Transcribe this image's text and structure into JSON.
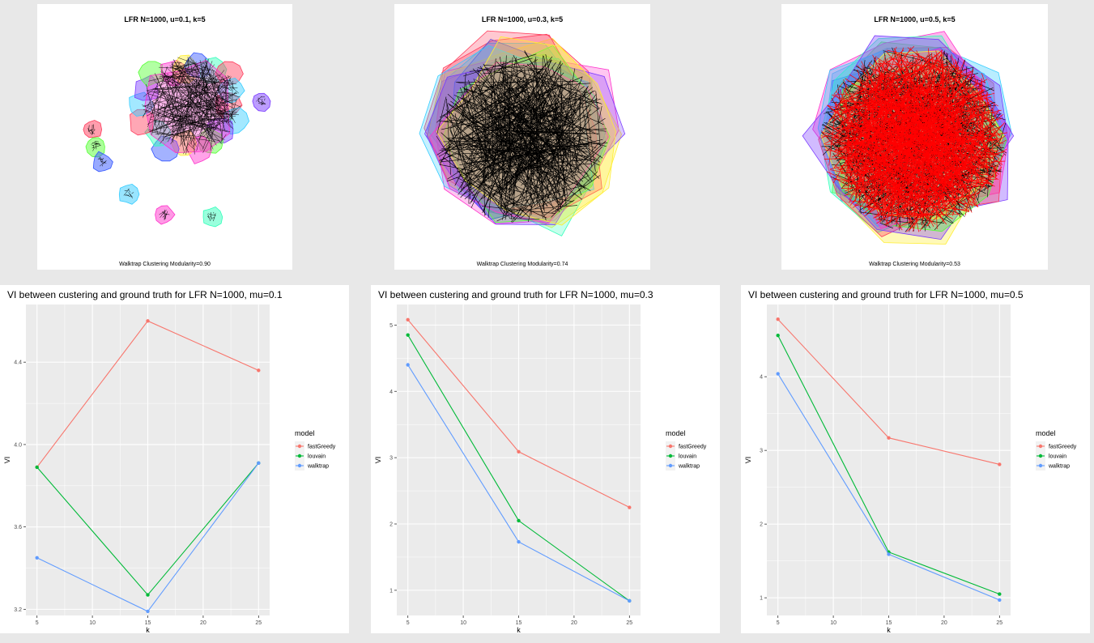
{
  "network_panels": [
    {
      "title": "LFR N=1000, u=0.1, k=5",
      "caption": "Walktrap Clustering Modularity=0.90",
      "edge_color": "#000000",
      "density": "low"
    },
    {
      "title": "LFR N=1000, u=0.3, k=5",
      "caption": "Walktrap Clustering Modularity=0.74",
      "edge_color": "#000000",
      "density": "medium"
    },
    {
      "title": "LFR N=1000, u=0.5, k=5",
      "caption": "Walktrap Clustering Modularity=0.53",
      "edge_color": "#ff0000",
      "density": "high"
    }
  ],
  "series_colors": {
    "fastGreedy": "#F8766D",
    "louvain": "#00BA38",
    "walktrap": "#619CFF"
  },
  "chart_data": [
    {
      "type": "line",
      "title": "VI between custering and ground truth for LFR N=1000, mu=0.1",
      "xlabel": "k",
      "ylabel": "VI",
      "x": [
        5,
        15,
        25
      ],
      "xlim": [
        4,
        26
      ],
      "ylim": [
        3.17,
        4.68
      ],
      "xticks": [
        "5",
        "10",
        "15",
        "20",
        "25"
      ],
      "yticks": [
        "3.2",
        "3.6",
        "4.0",
        "4.4"
      ],
      "legend_title": "model",
      "series": [
        {
          "name": "fastGreedy",
          "values": [
            3.89,
            4.6,
            4.36
          ]
        },
        {
          "name": "louvain",
          "values": [
            3.89,
            3.27,
            3.91
          ]
        },
        {
          "name": "walktrap",
          "values": [
            3.45,
            3.19,
            3.91
          ]
        }
      ]
    },
    {
      "type": "line",
      "title": "VI between custering and ground truth for LFR N=1000, mu=0.3",
      "xlabel": "k",
      "ylabel": "VI",
      "x": [
        5,
        15,
        25
      ],
      "xlim": [
        4,
        26
      ],
      "ylim": [
        0.62,
        5.31
      ],
      "xticks": [
        "5",
        "10",
        "15",
        "20",
        "25"
      ],
      "yticks": [
        "1",
        "2",
        "3",
        "4",
        "5"
      ],
      "legend_title": "model",
      "series": [
        {
          "name": "fastGreedy",
          "values": [
            5.08,
            3.09,
            2.25
          ]
        },
        {
          "name": "louvain",
          "values": [
            4.85,
            2.05,
            0.84
          ]
        },
        {
          "name": "walktrap",
          "values": [
            4.4,
            1.73,
            0.84
          ]
        }
      ]
    },
    {
      "type": "line",
      "title": "VI between custering and ground truth for LFR N=1000, mu=0.5",
      "xlabel": "k",
      "ylabel": "VI",
      "x": [
        5,
        15,
        25
      ],
      "xlim": [
        4,
        26
      ],
      "ylim": [
        0.76,
        4.98
      ],
      "xticks": [
        "5",
        "10",
        "15",
        "20",
        "25"
      ],
      "yticks": [
        "1",
        "2",
        "3",
        "4"
      ],
      "legend_title": "model",
      "series": [
        {
          "name": "fastGreedy",
          "values": [
            4.78,
            3.17,
            2.81
          ]
        },
        {
          "name": "louvain",
          "values": [
            4.56,
            1.62,
            1.05
          ]
        },
        {
          "name": "walktrap",
          "values": [
            4.04,
            1.59,
            0.97
          ]
        }
      ]
    }
  ]
}
